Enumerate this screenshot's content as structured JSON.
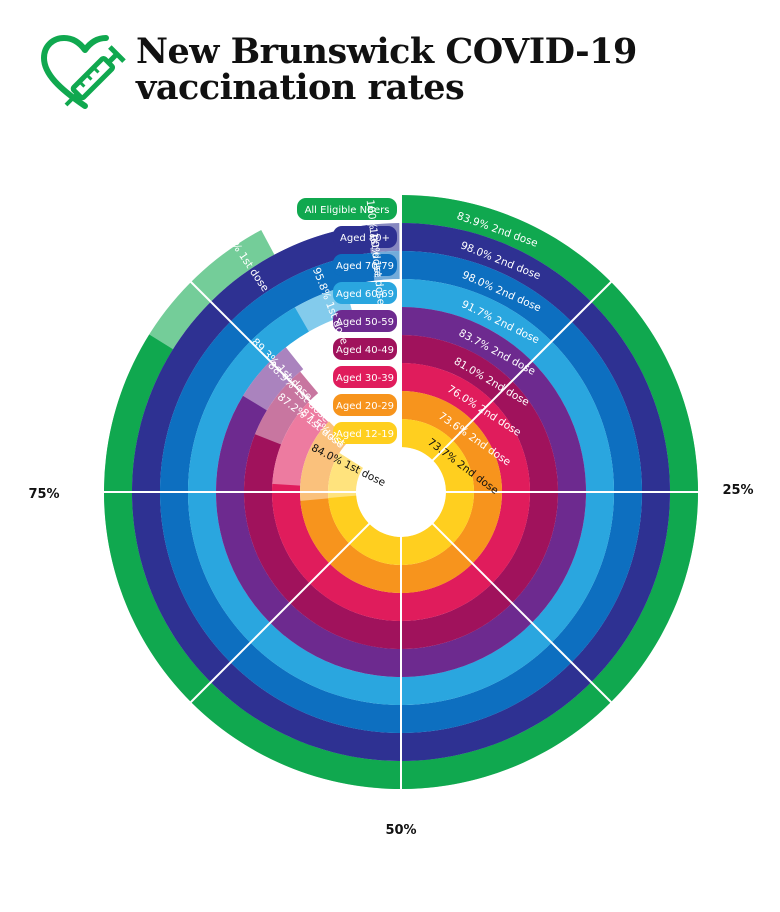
{
  "header": {
    "title_line1": "New Brunswick COVID-19",
    "title_line2": "vaccination rates"
  },
  "colors": {
    "green": "#10a84f",
    "navy": "#2e3192",
    "blue": "#0d6fc0",
    "light_blue": "#2aa6df",
    "purple": "#6d2a8f",
    "magenta": "#a0125c",
    "pink": "#e01c5c",
    "orange": "#f7941d",
    "yellow": "#ffcf1f"
  },
  "chart_data": {
    "type": "radial-bar",
    "title": "New Brunswick COVID-19 vaccination rates",
    "axis_labels": [
      "25%",
      "50%",
      "75%"
    ],
    "series": [
      {
        "group": "All Eligible NBers",
        "first_dose": 92.2,
        "second_dose": 83.9,
        "first_label": "92.2% 1st dose",
        "second_label": "83.9% 2nd dose",
        "color": "#10a84f"
      },
      {
        "group": "Aged 80+",
        "first_dose": 100,
        "second_dose": 98.0,
        "first_label": "100% 1st dose",
        "second_label": "98.0% 2nd dose",
        "color": "#2e3192"
      },
      {
        "group": "Aged 70-79",
        "first_dose": 100,
        "second_dose": 98.0,
        "first_label": "100% 1st dose",
        "second_label": "98.0% 2nd dose",
        "color": "#0d6fc0"
      },
      {
        "group": "Aged 60-69",
        "first_dose": 95.8,
        "second_dose": 91.7,
        "first_label": "95.8% 1st dose",
        "second_label": "91.7% 2nd dose",
        "color": "#2aa6df"
      },
      {
        "group": "Aged 50-59",
        "first_dose": 89.3,
        "second_dose": 83.7,
        "first_label": "89.3% 1st dose",
        "second_label": "83.7% 2nd dose",
        "color": "#6d2a8f"
      },
      {
        "group": "Aged 40-49",
        "first_dose": 88.9,
        "second_dose": 81.0,
        "first_label": "88.9% 1st dose",
        "second_label": "81.0% 2nd dose",
        "color": "#a0125c"
      },
      {
        "group": "Aged 30-39",
        "first_dose": 87.2,
        "second_dose": 76.0,
        "first_label": "87.2% 1st dose",
        "second_label": "76.0% 2nd dose",
        "color": "#e01c5c"
      },
      {
        "group": "Aged 20-29",
        "first_dose": 87.5,
        "second_dose": 73.6,
        "first_label": "87.5% 1st dose",
        "second_label": "73.6% 2nd dose",
        "color": "#f7941d"
      },
      {
        "group": "Aged 12-19",
        "first_dose": 84.0,
        "second_dose": 73.7,
        "first_label": "84.0% 1st dose",
        "second_label": "73.7% 2nd dose",
        "color": "#ffcf1f"
      }
    ]
  }
}
